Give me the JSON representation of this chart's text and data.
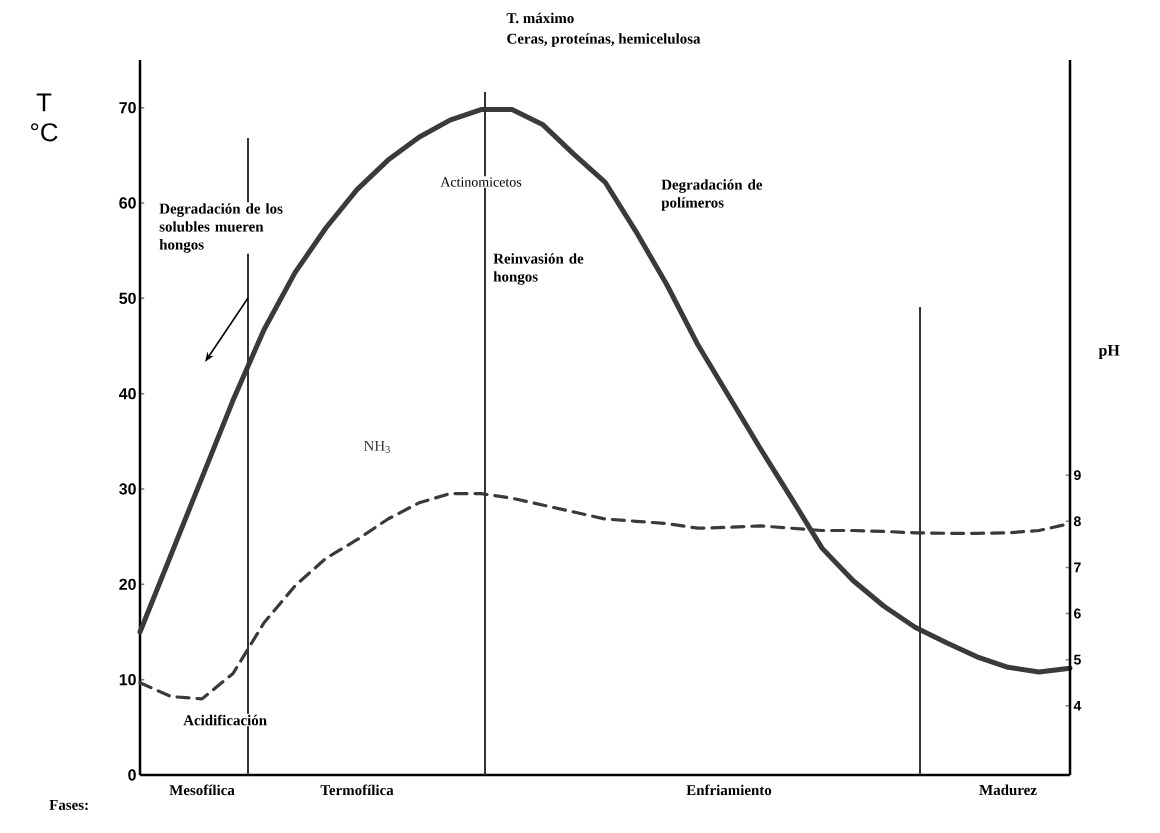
{
  "chart_data": {
    "type": "line",
    "title": "T. máximo",
    "subtitle": "Ceras, proteínas, hemicelulosa",
    "ylabel": "T °C",
    "y2label": "pH",
    "categories": [
      null,
      null,
      "Mesofílica",
      null,
      null,
      null,
      null,
      "Termofílica",
      null,
      null,
      null,
      null,
      null,
      null,
      null,
      null,
      null,
      null,
      null,
      "Enfriamiento",
      null,
      null,
      null,
      null,
      null,
      null,
      null,
      null,
      "Madurez",
      null,
      null
    ],
    "series": [
      {
        "color": "#3a3a3a",
        "line_style": "solid",
        "values": [
          15,
          23.1,
          31.2,
          39.3,
          46.7,
          52.7,
          57.4,
          61.4,
          64.5,
          66.9,
          68.7,
          69.8,
          69.8,
          68.2,
          65.1,
          62.2,
          57,
          51.4,
          45.1,
          39.7,
          34.3,
          29.1,
          23.8,
          20.4,
          17.7,
          15.5,
          13.9,
          12.4,
          11.3,
          10.8,
          11.2
        ]
      },
      {
        "name": "NH$_{3}$",
        "color": "#3a3a3a",
        "line_style": "dashed",
        "axis": "y2",
        "values": [
          4.5,
          4.2,
          4.15,
          4.7,
          5.8,
          6.6,
          7.2,
          7.6,
          8.05,
          8.4,
          8.6,
          8.6,
          8.5,
          8.35,
          8.2,
          8.05,
          8,
          7.95,
          7.85,
          7.87,
          7.9,
          7.85,
          7.8,
          7.8,
          7.78,
          7.75,
          7.74,
          7.74,
          7.75,
          7.8,
          7.95
        ]
      }
    ],
    "ylim": [
      0,
      75
    ],
    "yticks": [
      0,
      10,
      20,
      30,
      40,
      50,
      60,
      70
    ],
    "y2lim": [
      2.5,
      18
    ],
    "y2ticks": [
      4,
      5,
      6,
      7,
      8,
      9
    ],
    "marker": "none",
    "annotations": [
      "Degradación de los solubles mueren hongos",
      "Actinomicetos",
      "Reinvasión de hongos",
      "Degradación de polímeros",
      "Acidificación",
      "Fases:"
    ]
  }
}
